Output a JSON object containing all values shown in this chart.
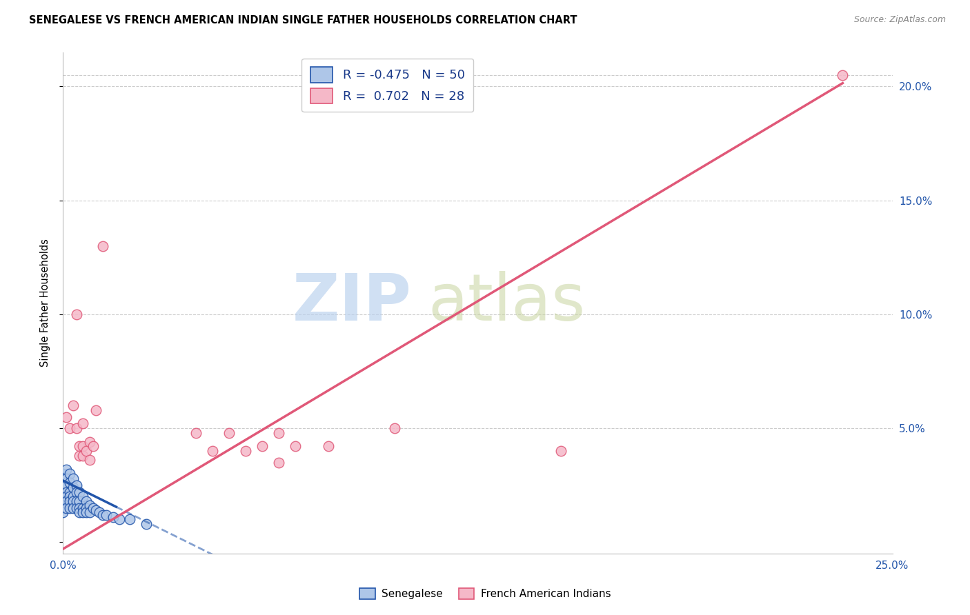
{
  "title": "SENEGALESE VS FRENCH AMERICAN INDIAN SINGLE FATHER HOUSEHOLDS CORRELATION CHART",
  "source": "Source: ZipAtlas.com",
  "ylabel": "Single Father Households",
  "xlim": [
    0.0,
    0.25
  ],
  "ylim": [
    -0.005,
    0.215
  ],
  "blue_R": -0.475,
  "blue_N": 50,
  "pink_R": 0.702,
  "pink_N": 28,
  "blue_color": "#aec6e8",
  "pink_color": "#f5b8c8",
  "blue_line_color": "#2255aa",
  "pink_line_color": "#e05878",
  "legend_label_blue": "Senegalese",
  "legend_label_pink": "French American Indians",
  "blue_dots": [
    [
      0.0,
      0.03
    ],
    [
      0.0,
      0.025
    ],
    [
      0.0,
      0.022
    ],
    [
      0.0,
      0.02
    ],
    [
      0.0,
      0.018
    ],
    [
      0.0,
      0.015
    ],
    [
      0.0,
      0.013
    ],
    [
      0.001,
      0.032
    ],
    [
      0.001,
      0.028
    ],
    [
      0.001,
      0.025
    ],
    [
      0.001,
      0.022
    ],
    [
      0.001,
      0.02
    ],
    [
      0.001,
      0.018
    ],
    [
      0.001,
      0.015
    ],
    [
      0.002,
      0.03
    ],
    [
      0.002,
      0.026
    ],
    [
      0.002,
      0.022
    ],
    [
      0.002,
      0.02
    ],
    [
      0.002,
      0.018
    ],
    [
      0.002,
      0.015
    ],
    [
      0.003,
      0.028
    ],
    [
      0.003,
      0.024
    ],
    [
      0.003,
      0.02
    ],
    [
      0.003,
      0.018
    ],
    [
      0.003,
      0.015
    ],
    [
      0.004,
      0.025
    ],
    [
      0.004,
      0.022
    ],
    [
      0.004,
      0.018
    ],
    [
      0.004,
      0.015
    ],
    [
      0.005,
      0.022
    ],
    [
      0.005,
      0.018
    ],
    [
      0.005,
      0.015
    ],
    [
      0.005,
      0.013
    ],
    [
      0.006,
      0.02
    ],
    [
      0.006,
      0.015
    ],
    [
      0.006,
      0.013
    ],
    [
      0.007,
      0.018
    ],
    [
      0.007,
      0.015
    ],
    [
      0.007,
      0.013
    ],
    [
      0.008,
      0.016
    ],
    [
      0.008,
      0.013
    ],
    [
      0.009,
      0.015
    ],
    [
      0.01,
      0.014
    ],
    [
      0.011,
      0.013
    ],
    [
      0.012,
      0.012
    ],
    [
      0.013,
      0.012
    ],
    [
      0.015,
      0.011
    ],
    [
      0.017,
      0.01
    ],
    [
      0.02,
      0.01
    ],
    [
      0.025,
      0.008
    ]
  ],
  "pink_dots": [
    [
      0.001,
      0.055
    ],
    [
      0.002,
      0.05
    ],
    [
      0.003,
      0.06
    ],
    [
      0.004,
      0.05
    ],
    [
      0.004,
      0.1
    ],
    [
      0.005,
      0.042
    ],
    [
      0.005,
      0.038
    ],
    [
      0.006,
      0.052
    ],
    [
      0.006,
      0.042
    ],
    [
      0.006,
      0.038
    ],
    [
      0.007,
      0.04
    ],
    [
      0.008,
      0.044
    ],
    [
      0.008,
      0.036
    ],
    [
      0.009,
      0.042
    ],
    [
      0.01,
      0.058
    ],
    [
      0.012,
      0.13
    ],
    [
      0.04,
      0.048
    ],
    [
      0.045,
      0.04
    ],
    [
      0.05,
      0.048
    ],
    [
      0.055,
      0.04
    ],
    [
      0.06,
      0.042
    ],
    [
      0.065,
      0.048
    ],
    [
      0.065,
      0.035
    ],
    [
      0.07,
      0.042
    ],
    [
      0.08,
      0.042
    ],
    [
      0.1,
      0.05
    ],
    [
      0.15,
      0.04
    ],
    [
      0.235,
      0.205
    ]
  ],
  "blue_line_x": [
    0.0,
    0.016,
    0.25
  ],
  "blue_line_solid_end": 0.016,
  "pink_line_x_start": 0.0,
  "pink_line_x_end": 0.235,
  "blue_line_intercept": 0.027,
  "blue_line_slope": -0.72,
  "pink_line_intercept": -0.003,
  "pink_line_slope": 0.87
}
